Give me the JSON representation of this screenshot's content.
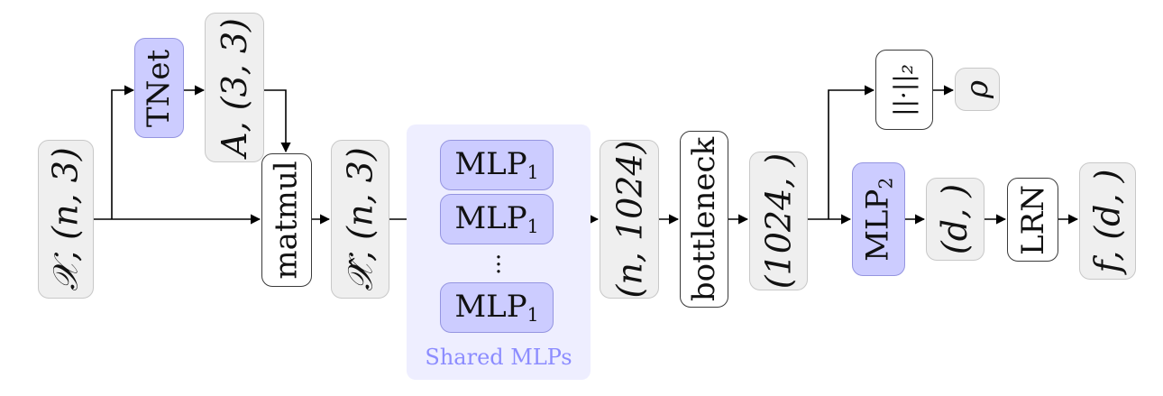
{
  "nodes": {
    "input": "𝒳, (n, 3)",
    "tnet": "TNet",
    "affine": "A, (3, 3)",
    "matmul": "matmul",
    "transformed": "𝒳̂, (n, 3)",
    "mlp1_base": "MLP",
    "mlp1_sub": "1",
    "vdots": "⋮",
    "features": "(n, 1024)",
    "bottleneck": "bottleneck",
    "global": "(1024, )",
    "norm": "||·||₂",
    "rho": "ρ",
    "mlp2_base": "MLP",
    "mlp2_sub": "2",
    "descriptor": "(d, )",
    "lrn": "LRN",
    "output": "f, (d, )"
  },
  "groups": {
    "shared_caption": "Shared MLPs"
  },
  "colors": {
    "grey_fill": "#efefef",
    "blue_fill": "#ccccff",
    "shared_bg": "#eeeeff",
    "caption": "#8c8cff"
  }
}
